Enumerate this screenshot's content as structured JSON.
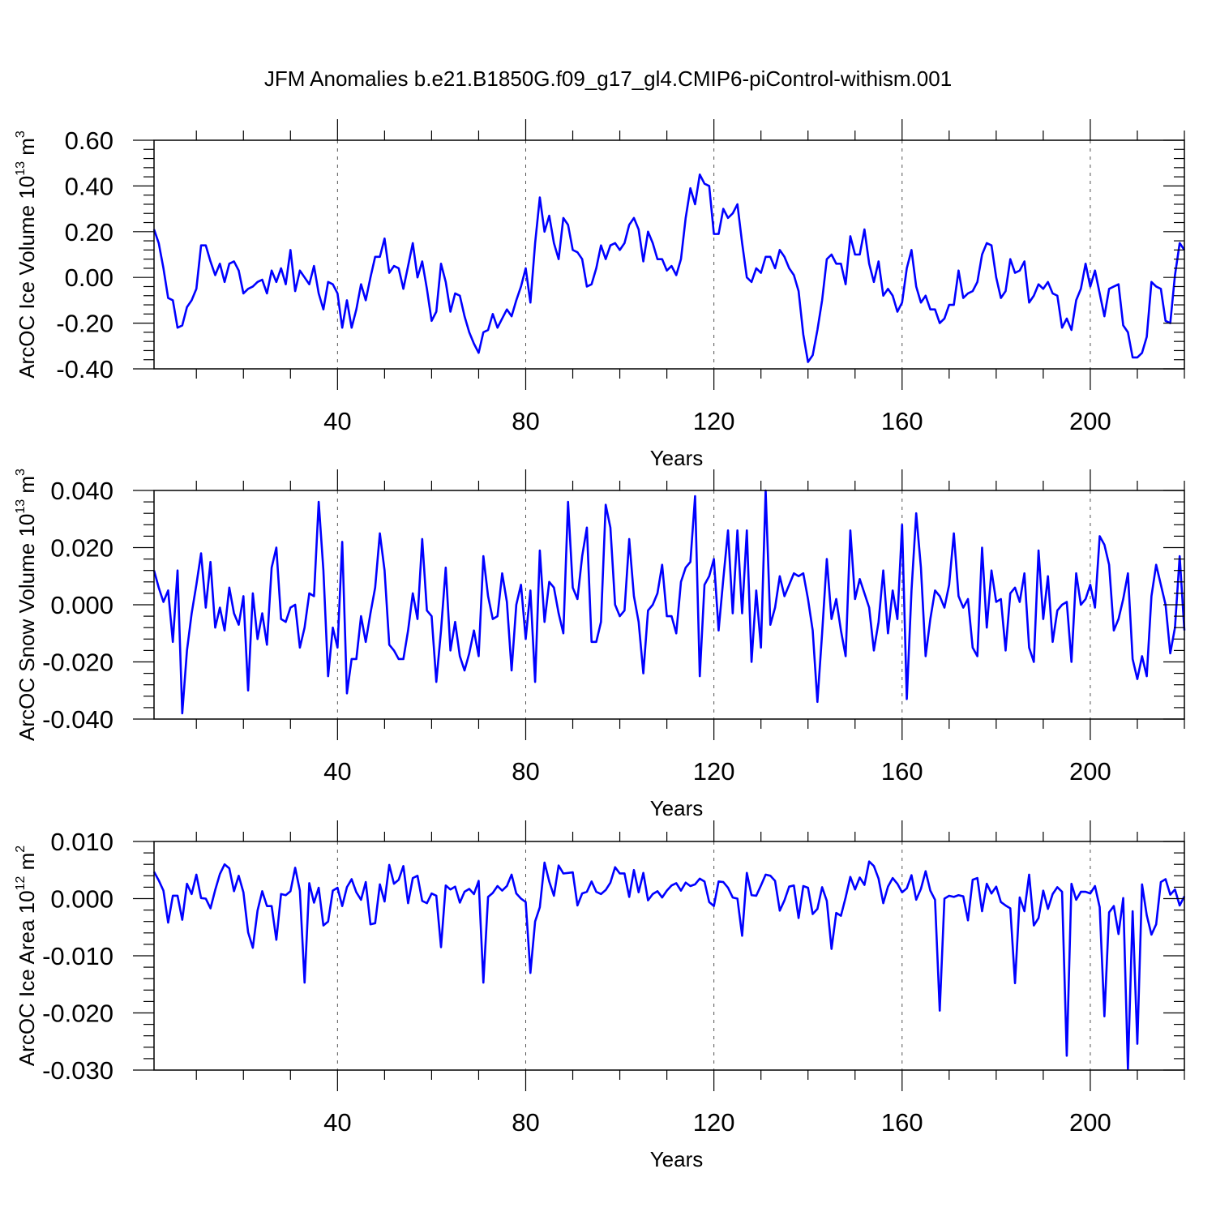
{
  "title": "JFM Anomalies b.e21.B1850G.f09_g17_gl4.CMIP6-piControl-withism.001",
  "line_color": "#0000ff",
  "chart_data": [
    {
      "type": "line",
      "xlabel": "Years",
      "ylabel": "ArcOC Ice Volume 10",
      "ylabel_exp": "13",
      "ylabel_unit": " m",
      "ylabel_unit_exp": "3",
      "xlim": [
        1,
        220
      ],
      "ylim": [
        -0.4,
        0.6
      ],
      "xticks": [
        40,
        80,
        120,
        160,
        200
      ],
      "xtick_labels": [
        "40",
        "80",
        "120",
        "160",
        "200"
      ],
      "yticks": [
        -0.4,
        -0.2,
        0.0,
        0.2,
        0.4,
        0.6
      ],
      "ytick_labels": [
        "-0.40",
        "-0.20",
        "0.00",
        "0.20",
        "0.40",
        "0.60"
      ],
      "grid": "vertical dashed at x ticks",
      "x_start": 1,
      "values": [
        0.21,
        0.15,
        0.04,
        -0.09,
        -0.1,
        -0.22,
        -0.21,
        -0.13,
        -0.1,
        -0.05,
        0.14,
        0.14,
        0.07,
        0.01,
        0.06,
        -0.02,
        0.06,
        0.07,
        0.03,
        -0.07,
        -0.05,
        -0.04,
        -0.02,
        -0.01,
        -0.07,
        0.03,
        -0.02,
        0.04,
        -0.03,
        0.12,
        -0.06,
        0.03,
        0.0,
        -0.03,
        0.05,
        -0.07,
        -0.14,
        -0.02,
        -0.03,
        -0.07,
        -0.22,
        -0.1,
        -0.22,
        -0.14,
        -0.03,
        -0.1,
        0.0,
        0.09,
        0.09,
        0.17,
        0.02,
        0.05,
        0.04,
        -0.05,
        0.05,
        0.15,
        0.0,
        0.07,
        -0.05,
        -0.19,
        -0.15,
        0.06,
        -0.02,
        -0.15,
        -0.07,
        -0.08,
        -0.17,
        -0.24,
        -0.29,
        -0.33,
        -0.24,
        -0.23,
        -0.16,
        -0.22,
        -0.18,
        -0.14,
        -0.17,
        -0.1,
        -0.04,
        0.04,
        -0.11,
        0.15,
        0.35,
        0.2,
        0.27,
        0.15,
        0.08,
        0.26,
        0.23,
        0.12,
        0.11,
        0.08,
        -0.04,
        -0.03,
        0.04,
        0.14,
        0.08,
        0.14,
        0.15,
        0.12,
        0.15,
        0.23,
        0.26,
        0.21,
        0.07,
        0.2,
        0.15,
        0.08,
        0.08,
        0.03,
        0.05,
        0.01,
        0.08,
        0.26,
        0.39,
        0.32,
        0.45,
        0.41,
        0.4,
        0.19,
        0.19,
        0.3,
        0.26,
        0.28,
        0.32,
        0.15,
        0.0,
        -0.02,
        0.04,
        0.02,
        0.09,
        0.09,
        0.04,
        0.12,
        0.09,
        0.04,
        0.01,
        -0.06,
        -0.25,
        -0.37,
        -0.34,
        -0.23,
        -0.1,
        0.08,
        0.1,
        0.06,
        0.06,
        -0.03,
        0.18,
        0.1,
        0.1,
        0.21,
        0.06,
        -0.02,
        0.07,
        -0.08,
        -0.05,
        -0.08,
        -0.15,
        -0.11,
        0.04,
        0.12,
        -0.04,
        -0.11,
        -0.08,
        -0.14,
        -0.14,
        -0.2,
        -0.18,
        -0.12,
        -0.12,
        0.03,
        -0.09,
        -0.07,
        -0.06,
        -0.02,
        0.1,
        0.15,
        0.14,
        0.0,
        -0.09,
        -0.06,
        0.08,
        0.02,
        0.03,
        0.07,
        -0.11,
        -0.08,
        -0.03,
        -0.05,
        -0.02,
        -0.07,
        -0.08,
        -0.22,
        -0.18,
        -0.23,
        -0.1,
        -0.05,
        0.06,
        -0.04,
        0.03,
        -0.07,
        -0.17,
        -0.05,
        -0.04,
        -0.03,
        -0.21,
        -0.24,
        -0.35,
        -0.35,
        -0.33,
        -0.26,
        -0.02,
        -0.04,
        -0.05,
        -0.19,
        -0.2,
        0.01,
        0.15,
        0.12
      ]
    },
    {
      "type": "line",
      "xlabel": "Years",
      "ylabel": "ArcOC Snow Volume 10",
      "ylabel_exp": "13",
      "ylabel_unit": " m",
      "ylabel_unit_exp": "3",
      "xlim": [
        1,
        220
      ],
      "ylim": [
        -0.04,
        0.04
      ],
      "xticks": [
        40,
        80,
        120,
        160,
        200
      ],
      "xtick_labels": [
        "40",
        "80",
        "120",
        "160",
        "200"
      ],
      "yticks": [
        -0.04,
        -0.02,
        0.0,
        0.02,
        0.04
      ],
      "ytick_labels": [
        "-0.040",
        "-0.020",
        "0.000",
        "0.020",
        "0.040"
      ],
      "grid": "vertical dashed at x ticks",
      "x_start": 1,
      "values": [
        0.012,
        0.006,
        0.001,
        0.005,
        -0.013,
        0.012,
        -0.038,
        -0.016,
        -0.003,
        0.007,
        0.018,
        -0.001,
        0.015,
        -0.008,
        -0.001,
        -0.009,
        0.006,
        -0.003,
        -0.007,
        0.003,
        -0.03,
        0.004,
        -0.012,
        -0.003,
        -0.014,
        0.013,
        0.02,
        -0.005,
        -0.006,
        -0.001,
        0.0,
        -0.015,
        -0.008,
        0.004,
        0.003,
        0.036,
        0.012,
        -0.025,
        -0.008,
        -0.015,
        0.022,
        -0.031,
        -0.019,
        -0.019,
        -0.004,
        -0.013,
        -0.003,
        0.006,
        0.025,
        0.012,
        -0.014,
        -0.016,
        -0.019,
        -0.019,
        -0.009,
        0.004,
        -0.005,
        0.023,
        -0.002,
        -0.004,
        -0.027,
        -0.009,
        0.013,
        -0.016,
        -0.006,
        -0.018,
        -0.023,
        -0.017,
        -0.009,
        -0.018,
        0.017,
        0.003,
        -0.005,
        -0.004,
        0.011,
        0.001,
        -0.023,
        0.0,
        0.007,
        -0.012,
        0.005,
        -0.027,
        0.019,
        -0.006,
        0.008,
        0.006,
        -0.003,
        -0.01,
        0.036,
        0.006,
        0.002,
        0.017,
        0.027,
        -0.013,
        -0.013,
        -0.006,
        0.035,
        0.027,
        0.0,
        -0.004,
        -0.002,
        0.023,
        0.003,
        -0.006,
        -0.024,
        -0.002,
        0.0,
        0.004,
        0.014,
        -0.004,
        -0.004,
        -0.01,
        0.008,
        0.013,
        0.015,
        0.038,
        -0.025,
        0.007,
        0.01,
        0.016,
        -0.009,
        0.009,
        0.026,
        -0.003,
        0.026,
        -0.003,
        0.026,
        -0.02,
        0.005,
        -0.015,
        0.04,
        -0.007,
        -0.001,
        0.01,
        0.003,
        0.007,
        0.011,
        0.01,
        0.011,
        0.002,
        -0.009,
        -0.034,
        -0.01,
        0.016,
        -0.005,
        0.002,
        -0.009,
        -0.018,
        0.026,
        0.002,
        0.009,
        0.004,
        -0.001,
        -0.016,
        -0.006,
        0.012,
        -0.01,
        0.005,
        -0.005,
        0.028,
        -0.033,
        0.005,
        0.032,
        0.013,
        -0.018,
        -0.005,
        0.005,
        0.003,
        -0.001,
        0.007,
        0.025,
        0.003,
        -0.001,
        0.002,
        -0.015,
        -0.018,
        0.02,
        -0.008,
        0.012,
        0.001,
        0.002,
        -0.016,
        0.004,
        0.006,
        0.001,
        0.011,
        -0.015,
        -0.02,
        0.019,
        -0.005,
        0.01,
        -0.013,
        -0.002,
        0.0,
        0.001,
        -0.02,
        0.011,
        0.0,
        0.002,
        0.007,
        -0.001,
        0.024,
        0.021,
        0.014,
        -0.009,
        -0.005,
        0.002,
        0.011,
        -0.019,
        -0.026,
        -0.018,
        -0.025,
        0.003,
        0.014,
        0.007,
        0.0,
        -0.017,
        -0.008,
        0.017,
        -0.009
      ]
    },
    {
      "type": "line",
      "xlabel": "Years",
      "ylabel": "ArcOC Ice Area 10",
      "ylabel_exp": "12",
      "ylabel_unit": " m",
      "ylabel_unit_exp": "2",
      "xlim": [
        1,
        220
      ],
      "ylim": [
        -0.03,
        0.01
      ],
      "xticks": [
        40,
        80,
        120,
        160,
        200
      ],
      "xtick_labels": [
        "40",
        "80",
        "120",
        "160",
        "200"
      ],
      "yticks": [
        -0.03,
        -0.02,
        -0.01,
        0.0,
        0.01
      ],
      "ytick_labels": [
        "-0.030",
        "-0.020",
        "-0.010",
        "0.000",
        "0.010"
      ],
      "grid": "vertical dashed at x ticks",
      "x_start": 1,
      "values": [
        0.0047,
        0.0032,
        0.0014,
        -0.0042,
        0.0005,
        0.0005,
        -0.0037,
        0.0026,
        0.0008,
        0.0042,
        0.0001,
        0.0,
        -0.0017,
        0.0015,
        0.0043,
        0.006,
        0.0053,
        0.0013,
        0.004,
        0.0011,
        -0.0059,
        -0.0086,
        -0.0021,
        0.0013,
        -0.0013,
        -0.0013,
        -0.0072,
        0.0008,
        0.0006,
        0.0013,
        0.0054,
        0.0014,
        -0.0147,
        0.0027,
        -0.0007,
        0.0019,
        -0.0047,
        -0.004,
        0.0014,
        0.0019,
        -0.0013,
        0.002,
        0.0034,
        0.0011,
        -0.0002,
        0.0029,
        -0.0045,
        -0.0043,
        0.0025,
        -0.0005,
        0.0059,
        0.0026,
        0.0033,
        0.0057,
        -0.0008,
        0.0036,
        0.004,
        -0.0004,
        -0.0008,
        0.0009,
        0.0005,
        -0.0085,
        0.0023,
        0.0016,
        0.0021,
        -0.0007,
        0.0012,
        0.0017,
        0.0008,
        0.0031,
        -0.0147,
        0.0003,
        0.001,
        0.0022,
        0.0014,
        0.0022,
        0.0042,
        0.0009,
        0.0,
        -0.0006,
        -0.013,
        -0.004,
        -0.0015,
        0.0063,
        0.003,
        0.0005,
        0.0058,
        0.0044,
        0.0045,
        0.0046,
        -0.0012,
        0.0009,
        0.0012,
        0.003,
        0.0012,
        0.0008,
        0.0015,
        0.0028,
        0.0055,
        0.0044,
        0.0044,
        0.0003,
        0.005,
        0.0011,
        0.0045,
        -0.0003,
        0.0008,
        0.0013,
        0.0002,
        0.0014,
        0.0023,
        0.0027,
        0.0014,
        0.0028,
        0.0022,
        0.0025,
        0.0035,
        0.003,
        -0.0006,
        -0.0013,
        0.003,
        0.0029,
        0.0019,
        0.0002,
        0.0,
        -0.0065,
        0.0045,
        0.0006,
        0.0005,
        0.0023,
        0.0042,
        0.004,
        0.0031,
        -0.0021,
        -0.0003,
        0.0021,
        0.0023,
        -0.0034,
        0.0022,
        0.0019,
        -0.0027,
        -0.0018,
        0.002,
        -0.0004,
        -0.0088,
        -0.0025,
        -0.003,
        0.0002,
        0.0038,
        0.0016,
        0.0037,
        0.0024,
        0.0065,
        0.0057,
        0.0035,
        -0.0008,
        0.0021,
        0.0036,
        0.0026,
        0.0011,
        0.0018,
        0.0041,
        -0.0002,
        0.0017,
        0.0048,
        0.0014,
        -0.0002,
        -0.0196,
        0.0,
        0.0005,
        0.0003,
        0.0006,
        0.0004,
        -0.0038,
        0.0033,
        0.0036,
        -0.0022,
        0.0026,
        0.0009,
        0.0021,
        -0.0006,
        -0.0012,
        -0.0017,
        -0.0148,
        0.0002,
        -0.0022,
        0.0042,
        -0.0047,
        -0.0034,
        0.0014,
        -0.0018,
        0.0008,
        0.002,
        0.0012,
        -0.0275,
        0.0026,
        -0.0002,
        0.0012,
        0.0012,
        0.0009,
        0.0022,
        -0.0015,
        -0.0206,
        -0.0024,
        -0.0013,
        -0.0062,
        0.0001,
        -0.0298,
        -0.0022,
        -0.0254,
        0.0025,
        -0.0029,
        -0.0063,
        -0.0045,
        0.0029,
        0.0034,
        0.0007,
        0.0016,
        -0.0012,
        0.0004
      ]
    }
  ]
}
